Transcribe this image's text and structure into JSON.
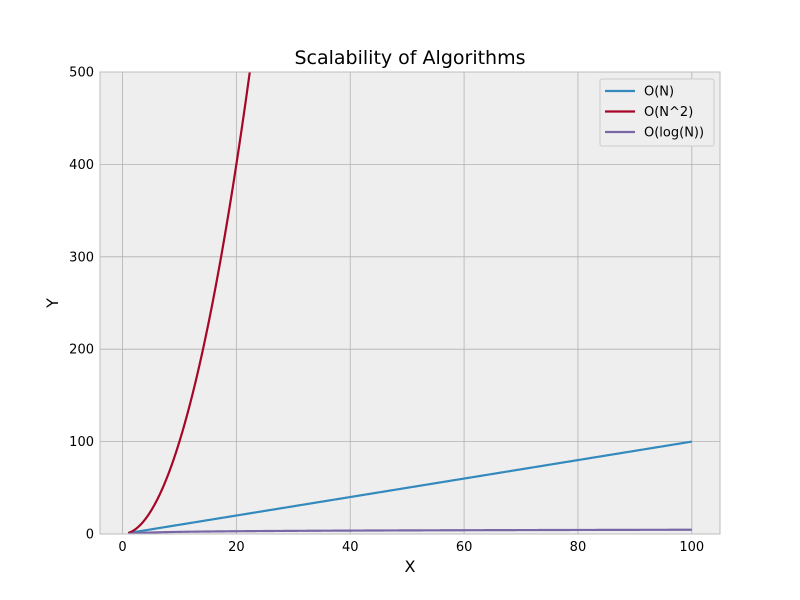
{
  "chart_data": {
    "type": "line",
    "title": "Scalability of Algorithms",
    "xlabel": "X",
    "ylabel": "Y",
    "xlim": [
      -3.95,
      104.95
    ],
    "ylim": [
      0,
      500
    ],
    "x_ticks": [
      0,
      20,
      40,
      60,
      80,
      100
    ],
    "y_ticks": [
      0,
      100,
      200,
      300,
      400,
      500
    ],
    "grid": true,
    "legend_position": "top-right",
    "x_start": 1,
    "x_end": 100,
    "series": [
      {
        "name": "O(N)",
        "function": "N",
        "color": "#348abd"
      },
      {
        "name": "O(N^2)",
        "function": "N^2",
        "color": "#a60628"
      },
      {
        "name": "O(log(N))",
        "function": "log(N)",
        "color": "#7a68a6"
      }
    ]
  }
}
